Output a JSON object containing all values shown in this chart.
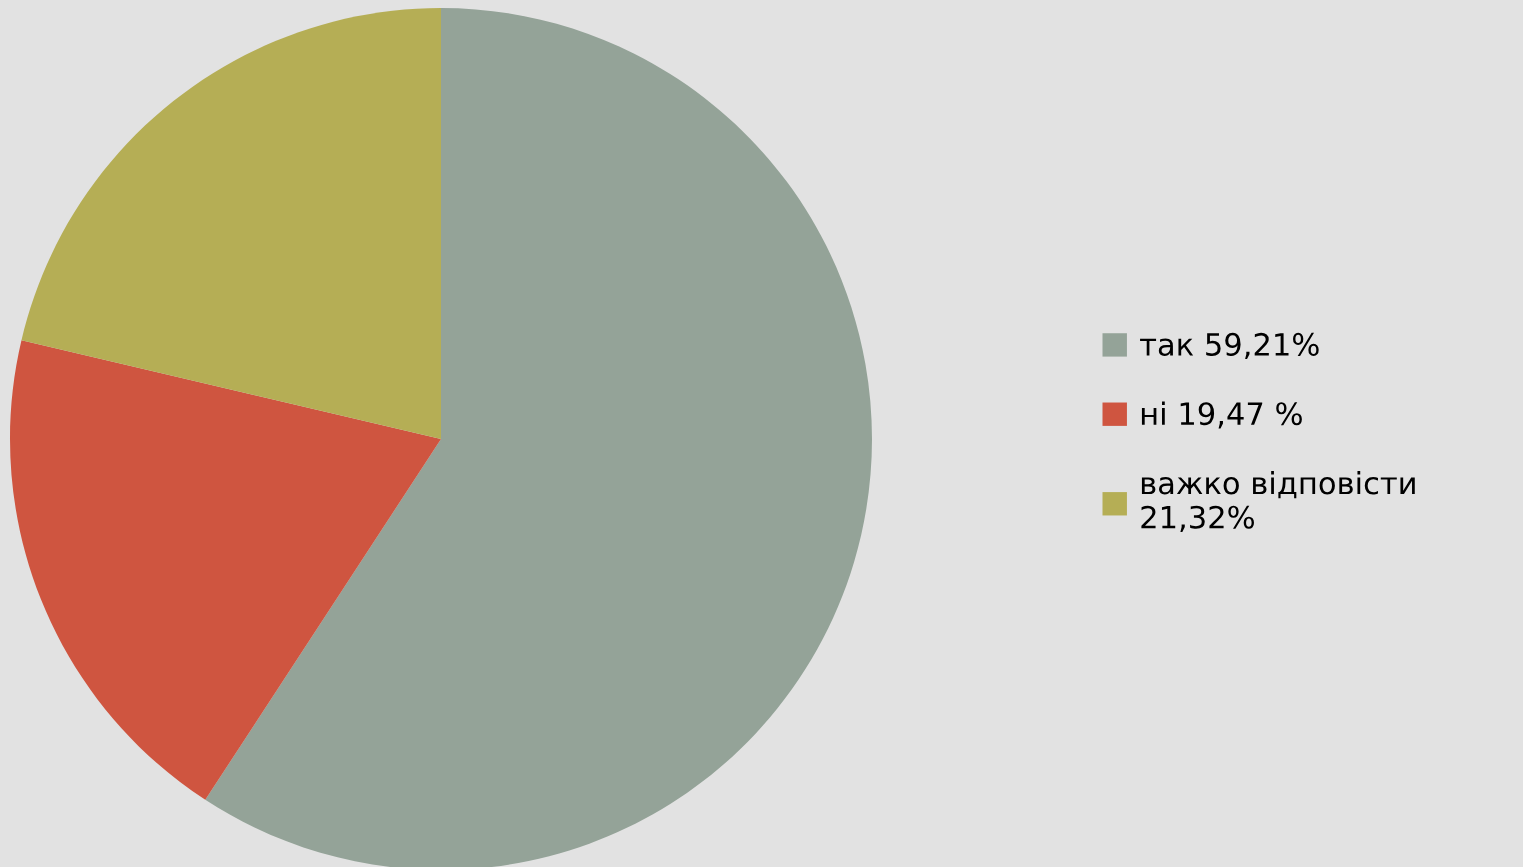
{
  "chart_data": {
    "type": "pie",
    "categories": [
      "так 59,21%",
      "ні 19,47 %",
      "важко відповісти\n21,32%"
    ],
    "values": [
      59.21,
      19.47,
      21.32
    ],
    "colors": [
      "#94a398",
      "#cf5540",
      "#b5ae55"
    ],
    "legend": "right"
  }
}
